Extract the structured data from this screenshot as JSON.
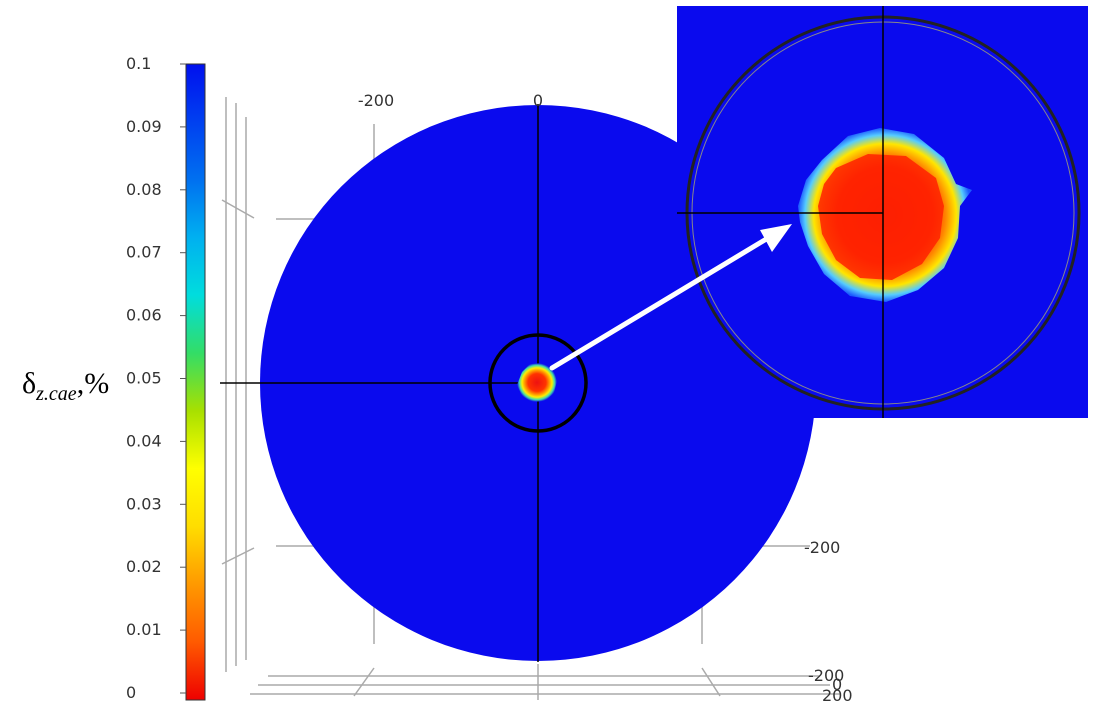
{
  "colorbar": {
    "ticks": [
      "0.1",
      "0.09",
      "0.08",
      "0.07",
      "0.06",
      "0.05",
      "0.04",
      "0.03",
      "0.02",
      "0.01",
      "0"
    ],
    "range": [
      0,
      0.1
    ],
    "colors": [
      "#ee0000",
      "#ff5a00",
      "#ff9900",
      "#ffdd00",
      "#ffff00",
      "#a8e000",
      "#33dd66",
      "#00dddd",
      "#00b0f0",
      "#0070f0",
      "#0040f0",
      "#0010ee"
    ]
  },
  "quantity_label": {
    "symbol": "δ",
    "subscript": "z.cae",
    "unit": ",%"
  },
  "axes": {
    "top_ticks": [
      "-200",
      "0"
    ],
    "right_tick": "-200",
    "bottom_ticks": [
      "-200",
      "0",
      "200"
    ]
  },
  "colors": {
    "field": "#0a0aee",
    "hotspot_core": "#ee1111",
    "hotspot_mid": "#ff9900",
    "hotspot_edge": "#ffee00",
    "hotspot_fringe": "#44ccff",
    "axis_line": "#000000",
    "frame_line": "#aaaaaa",
    "arrow": "#ffffff"
  }
}
